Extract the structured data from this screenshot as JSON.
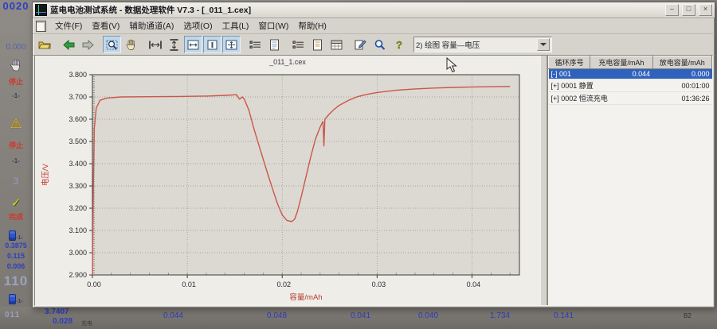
{
  "backdrop": {
    "left_strip": {
      "top_number": "0020",
      "second_number": "0.000",
      "stop_label_1": "停止",
      "marker_1": "-1-",
      "stop_label_2": "停止",
      "marker_2": "-1-",
      "digit": "3",
      "done_label": "完成",
      "battery_marker_1": "-1-",
      "values": [
        "0.3875",
        "0.115",
        "0.006"
      ],
      "channel_big_1": "110",
      "battery_marker_2": "-1-"
    },
    "bottom_band": {
      "channel_big_2": "011",
      "voltage": "3.7407",
      "current": "0.028",
      "mode_label": "充电",
      "numbers": [
        "0.044",
        "0.048",
        "0.041",
        "0.040",
        "1.734",
        "0.141"
      ],
      "corner_label": "B2"
    }
  },
  "window": {
    "title": "蓝电电池测试系统 - 数据处理软件 V7.3 - [_011_1.cex]",
    "controls": {
      "minimize": "–",
      "maximize": "□",
      "close": "×"
    },
    "menus": [
      "文件(F)",
      "查看(V)",
      "辅助通道(A)",
      "选项(O)",
      "工具(L)",
      "窗口(W)",
      "帮助(H)"
    ],
    "toolbar": {
      "icons": [
        {
          "name": "open-file",
          "pressed": false
        },
        {
          "name": "sep"
        },
        {
          "name": "back-arrow",
          "pressed": false
        },
        {
          "name": "forward-arrow",
          "pressed": false
        },
        {
          "name": "sep"
        },
        {
          "name": "zoom-select",
          "pressed": true
        },
        {
          "name": "pan-hand",
          "pressed": false
        },
        {
          "name": "sep"
        },
        {
          "name": "fit-width",
          "pressed": false
        },
        {
          "name": "fit-height",
          "pressed": false
        },
        {
          "name": "layout-tile",
          "pressed": true
        },
        {
          "name": "layout-single",
          "pressed": true
        },
        {
          "name": "layout-grid",
          "pressed": true
        },
        {
          "name": "sep"
        },
        {
          "name": "data-list",
          "pressed": false
        },
        {
          "name": "data-report",
          "pressed": false
        },
        {
          "name": "sep"
        },
        {
          "name": "step-list",
          "pressed": false
        },
        {
          "name": "step-report",
          "pressed": false
        },
        {
          "name": "grid-view",
          "pressed": false
        },
        {
          "name": "sep"
        },
        {
          "name": "annotate",
          "pressed": false
        },
        {
          "name": "search",
          "pressed": false
        },
        {
          "name": "help",
          "pressed": false
        }
      ],
      "plot_selector": "2) 绘图  容量—电压"
    },
    "side_table": {
      "headers": [
        "循环序号",
        "充电容量/mAh",
        "放电容量/mAh"
      ],
      "rows": [
        {
          "expander": "[-]",
          "label": "001",
          "charge": "0.044",
          "discharge": "0.000",
          "selected": true
        },
        {
          "expander": "[+]",
          "label": "0001 静置",
          "charge": "",
          "discharge": "00:01:00",
          "selected": false
        },
        {
          "expander": "[+]",
          "label": "0002 恒流充电",
          "charge": "",
          "discharge": "01:36:26",
          "selected": false
        }
      ]
    }
  },
  "chart_data": {
    "type": "line",
    "title": "_011_1.cex",
    "xlabel": "容量/mAh",
    "ylabel": "电压/V",
    "xlim": [
      0,
      0.045
    ],
    "ylim": [
      2.9,
      3.8
    ],
    "x_ticks": [
      0.0,
      0.01,
      0.02,
      0.03,
      0.04
    ],
    "y_ticks": [
      3.8,
      3.7,
      3.6,
      3.5,
      3.4,
      3.3,
      3.2,
      3.1,
      3.0,
      2.9
    ],
    "grid": true,
    "legend": "none",
    "series": [
      {
        "name": "电压",
        "color": "#c9574a",
        "points": [
          [
            0.0,
            2.9
          ],
          [
            0.0001,
            3.3
          ],
          [
            0.0002,
            3.56
          ],
          [
            0.0004,
            3.65
          ],
          [
            0.0008,
            3.685
          ],
          [
            0.0015,
            3.695
          ],
          [
            0.003,
            3.7
          ],
          [
            0.006,
            3.701
          ],
          [
            0.009,
            3.702
          ],
          [
            0.012,
            3.704
          ],
          [
            0.014,
            3.707
          ],
          [
            0.0152,
            3.71
          ],
          [
            0.0155,
            3.69
          ],
          [
            0.0158,
            3.7
          ],
          [
            0.016,
            3.69
          ],
          [
            0.0165,
            3.64
          ],
          [
            0.017,
            3.56
          ],
          [
            0.0175,
            3.49
          ],
          [
            0.018,
            3.42
          ],
          [
            0.0185,
            3.35
          ],
          [
            0.019,
            3.285
          ],
          [
            0.0195,
            3.22
          ],
          [
            0.02,
            3.17
          ],
          [
            0.0205,
            3.145
          ],
          [
            0.021,
            3.14
          ],
          [
            0.0213,
            3.15
          ],
          [
            0.0216,
            3.185
          ],
          [
            0.022,
            3.25
          ],
          [
            0.0225,
            3.34
          ],
          [
            0.023,
            3.43
          ],
          [
            0.0235,
            3.51
          ],
          [
            0.024,
            3.565
          ],
          [
            0.0243,
            3.59
          ],
          [
            0.0244,
            3.48
          ],
          [
            0.0245,
            3.6
          ],
          [
            0.025,
            3.625
          ],
          [
            0.0255,
            3.645
          ],
          [
            0.026,
            3.662
          ],
          [
            0.027,
            3.685
          ],
          [
            0.028,
            3.702
          ],
          [
            0.029,
            3.712
          ],
          [
            0.03,
            3.72
          ],
          [
            0.032,
            3.73
          ],
          [
            0.034,
            3.736
          ],
          [
            0.036,
            3.74
          ],
          [
            0.038,
            3.743
          ],
          [
            0.04,
            3.745
          ],
          [
            0.042,
            3.746
          ],
          [
            0.044,
            3.747
          ]
        ]
      }
    ]
  }
}
